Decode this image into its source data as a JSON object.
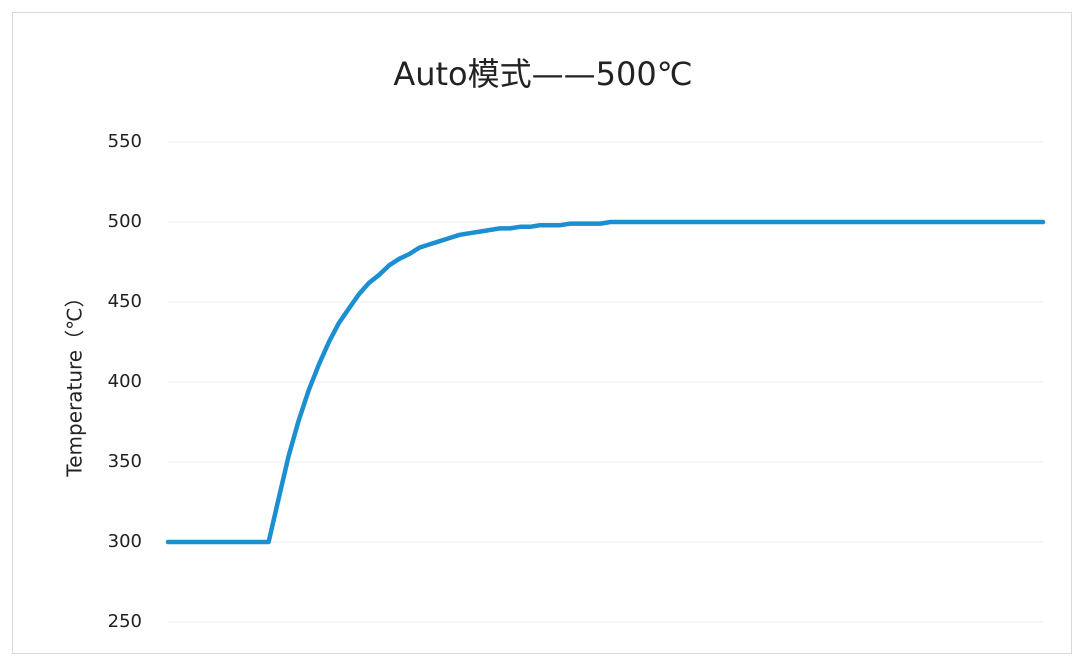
{
  "chart_data": {
    "type": "line",
    "title": "Auto模式——500℃",
    "y_label": "Temperature（℃）",
    "values": [
      300,
      300,
      300,
      300,
      300,
      300,
      300,
      300,
      300,
      300,
      300,
      327,
      354,
      376,
      395,
      411,
      425,
      437,
      446,
      455,
      462,
      467,
      473,
      477,
      480,
      484,
      486,
      488,
      490,
      492,
      493,
      494,
      495,
      496,
      496,
      497,
      497,
      498,
      498,
      498,
      499,
      499,
      499,
      499,
      500,
      500,
      500,
      500,
      500,
      500,
      500,
      500,
      500,
      500,
      500,
      500,
      500,
      500,
      500,
      500,
      500,
      500,
      500,
      500,
      500,
      500,
      500,
      500,
      500,
      500,
      500,
      500,
      500,
      500,
      500,
      500,
      500,
      500,
      500,
      500,
      500,
      500,
      500,
      500,
      500,
      500,
      500,
      500
    ],
    "color": "#1b8fd1",
    "ylim": [
      250,
      550
    ],
    "yticks": [
      250,
      300,
      350,
      400,
      450,
      500,
      550
    ],
    "grid": true
  }
}
